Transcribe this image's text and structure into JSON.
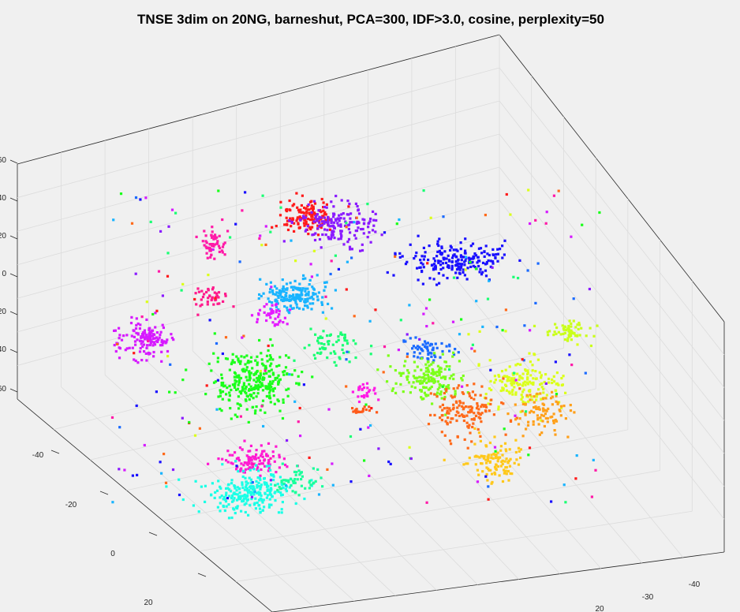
{
  "chart_data": {
    "type": "scatter",
    "title": "TNSE 3dim on 20NG, barneshut, PCA=300, IDF>3.0, cosine, perplexity=50",
    "xlabel": "",
    "ylabel": "",
    "zlabel": "",
    "grid": true,
    "legend": "none",
    "view": "3d",
    "x_ticks": [
      "-40",
      "-20",
      "0",
      "20"
    ],
    "y_ticks": [
      "-40",
      "-30",
      "20"
    ],
    "z_ticks": [
      "60",
      "40",
      "20",
      "0",
      "20",
      "40",
      "60"
    ],
    "clusters": [
      {
        "color": "#ff1a1a",
        "center": [
          390,
          275
        ],
        "spread": [
          30,
          22
        ],
        "count": 130
      },
      {
        "color": "#8a1aff",
        "center": [
          430,
          285
        ],
        "spread": [
          45,
          22
        ],
        "count": 170
      },
      {
        "color": "#ff1aa8",
        "center": [
          270,
          310
        ],
        "spread": [
          16,
          16
        ],
        "count": 60
      },
      {
        "color": "#ff1a8c",
        "center": [
          265,
          378
        ],
        "spread": [
          18,
          12
        ],
        "count": 40
      },
      {
        "color": "#1a10ff",
        "center": [
          580,
          330
        ],
        "spread": [
          55,
          22
        ],
        "count": 210
      },
      {
        "color": "#19b4ff",
        "center": [
          375,
          375
        ],
        "spread": [
          40,
          18
        ],
        "count": 180
      },
      {
        "color": "#d61aff",
        "center": [
          185,
          430
        ],
        "spread": [
          30,
          22
        ],
        "count": 140
      },
      {
        "color": "#e41aff",
        "center": [
          345,
          400
        ],
        "spread": [
          20,
          14
        ],
        "count": 40
      },
      {
        "color": "#1aff1a",
        "center": [
          320,
          485
        ],
        "spread": [
          45,
          32
        ],
        "count": 280
      },
      {
        "color": "#1aff73",
        "center": [
          420,
          440
        ],
        "spread": [
          35,
          18
        ],
        "count": 60
      },
      {
        "color": "#1a6aff",
        "center": [
          545,
          445
        ],
        "spread": [
          30,
          14
        ],
        "count": 60
      },
      {
        "color": "#7dff1a",
        "center": [
          545,
          480
        ],
        "spread": [
          40,
          26
        ],
        "count": 160
      },
      {
        "color": "#dbff1a",
        "center": [
          665,
          485
        ],
        "spread": [
          45,
          26
        ],
        "count": 160
      },
      {
        "color": "#ff6a1a",
        "center": [
          590,
          520
        ],
        "spread": [
          45,
          30
        ],
        "count": 140
      },
      {
        "color": "#ffa01a",
        "center": [
          690,
          520
        ],
        "spread": [
          30,
          22
        ],
        "count": 90
      },
      {
        "color": "#ffc81a",
        "center": [
          625,
          585
        ],
        "spread": [
          30,
          22
        ],
        "count": 110
      },
      {
        "color": "#ff1ad2",
        "center": [
          320,
          585
        ],
        "spread": [
          40,
          14
        ],
        "count": 110
      },
      {
        "color": "#1affe6",
        "center": [
          320,
          625
        ],
        "spread": [
          50,
          22
        ],
        "count": 240
      },
      {
        "color": "#1aff9c",
        "center": [
          380,
          610
        ],
        "spread": [
          25,
          14
        ],
        "count": 50
      },
      {
        "color": "#caff1a",
        "center": [
          725,
          420
        ],
        "spread": [
          25,
          10
        ],
        "count": 60
      },
      {
        "color": "#ff1ae6",
        "center": [
          462,
          498
        ],
        "spread": [
          15,
          10
        ],
        "count": 25
      },
      {
        "color": "#ff5a1a",
        "center": [
          460,
          522
        ],
        "spread": [
          15,
          6
        ],
        "count": 18
      }
    ],
    "scattered_colors": [
      "#1aff1a",
      "#1a10ff",
      "#ff1aa8",
      "#19b4ff",
      "#8a1aff",
      "#ff1a1a",
      "#1aff73",
      "#ff6a1a",
      "#dbff1a",
      "#1a6aff",
      "#d61aff"
    ]
  }
}
